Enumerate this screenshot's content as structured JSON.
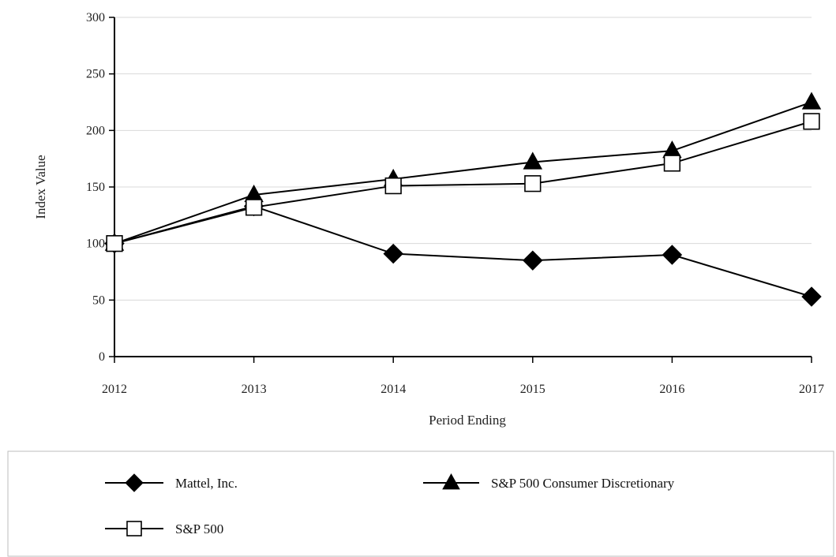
{
  "chart_data": {
    "type": "line",
    "title": "",
    "xlabel": "Period Ending",
    "ylabel": "Index Value",
    "x": [
      "2012",
      "2013",
      "2014",
      "2015",
      "2016",
      "2017"
    ],
    "ylim": [
      0,
      300
    ],
    "yticks": [
      0,
      50,
      100,
      150,
      200,
      250,
      300
    ],
    "grid": "horizontal",
    "legend_position": "bottom",
    "series": [
      {
        "name": "Mattel, Inc.",
        "marker": "diamond-filled",
        "color": "#000000",
        "values": [
          100,
          133,
          91,
          85,
          90,
          53
        ]
      },
      {
        "name": "S&P 500 Consumer Discretionary",
        "marker": "triangle-filled",
        "color": "#000000",
        "values": [
          100,
          143,
          157,
          172,
          182,
          225
        ]
      },
      {
        "name": "S&P 500",
        "marker": "square-open",
        "color": "#000000",
        "values": [
          100,
          132,
          151,
          153,
          171,
          208
        ]
      }
    ]
  }
}
